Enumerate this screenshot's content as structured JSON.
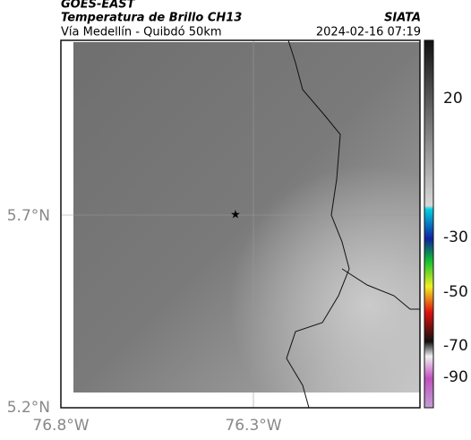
{
  "header": {
    "title": "GOES-EAST",
    "subtitle": "Temperatura de Brillo CH13",
    "location": "Vía Medellín - Quibdó 50km",
    "source": "SIATA",
    "timestamp": "2024-02-16 07:19"
  },
  "axes": {
    "lat_labels": [
      "5.7°N",
      "5.2°N"
    ],
    "lon_labels": [
      "76.8°W",
      "76.3°W"
    ]
  },
  "colorbar": {
    "tick_labels": [
      "20",
      "-30",
      "-50",
      "-70",
      "-90"
    ]
  }
}
